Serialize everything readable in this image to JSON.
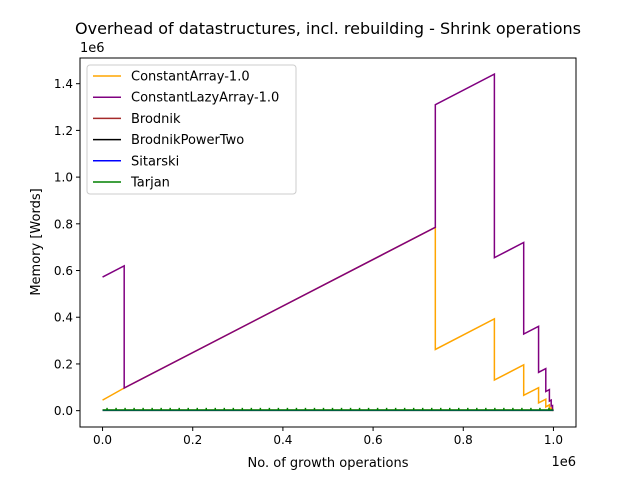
{
  "chart_data": {
    "type": "line",
    "title": "Overhead of datastructures, incl. rebuilding - Shrink operations",
    "xlabel": "No. of growth operations",
    "ylabel": "Memory [Words]",
    "x_offset_label": "1e6",
    "y_offset_label": "1e6",
    "xlim": [
      -50000,
      1050000
    ],
    "ylim": [
      -70000,
      1510000
    ],
    "x_ticks": [
      0,
      200000,
      400000,
      600000,
      800000,
      1000000
    ],
    "x_tick_labels": [
      "0.0",
      "0.2",
      "0.4",
      "0.6",
      "0.8",
      "1.0"
    ],
    "y_ticks": [
      0,
      200000,
      400000,
      600000,
      800000,
      1000000,
      1200000,
      1400000
    ],
    "y_tick_labels": [
      "0.0",
      "0.2",
      "0.4",
      "0.6",
      "0.8",
      "1.0",
      "1.2",
      "1.4"
    ],
    "legend_position": "top-left",
    "grid": false,
    "series": [
      {
        "name": "ConstantArray-1.0",
        "color": "#ffa500",
        "points": [
          [
            0,
            45000
          ],
          [
            48000,
            97000
          ],
          [
            48000,
            97000
          ],
          [
            738000,
            785000
          ],
          [
            738000,
            262000
          ],
          [
            869000,
            393000
          ],
          [
            869000,
            131000
          ],
          [
            934000,
            196000
          ],
          [
            934000,
            66000
          ],
          [
            967000,
            98000
          ],
          [
            967000,
            33000
          ],
          [
            983000,
            49000
          ],
          [
            983000,
            16000
          ],
          [
            991000,
            25000
          ],
          [
            991000,
            8000
          ],
          [
            995000,
            12000
          ],
          [
            995000,
            4000
          ],
          [
            998000,
            6000
          ],
          [
            998000,
            2000
          ],
          [
            1000000,
            0
          ]
        ]
      },
      {
        "name": "ConstantLazyArray-1.0",
        "color": "#800080",
        "points": [
          [
            0,
            572000
          ],
          [
            48000,
            620000
          ],
          [
            48000,
            97000
          ],
          [
            738000,
            785000
          ],
          [
            738000,
            1310000
          ],
          [
            869000,
            1441000
          ],
          [
            869000,
            655000
          ],
          [
            934000,
            720000
          ],
          [
            934000,
            328000
          ],
          [
            967000,
            361000
          ],
          [
            967000,
            164000
          ],
          [
            983000,
            180000
          ],
          [
            983000,
            82000
          ],
          [
            991000,
            90000
          ],
          [
            991000,
            41000
          ],
          [
            995000,
            45000
          ],
          [
            995000,
            20000
          ],
          [
            998000,
            22000
          ],
          [
            998000,
            5000
          ],
          [
            1000000,
            0
          ]
        ]
      },
      {
        "name": "Brodnik",
        "color": "#a52a2a",
        "points": [
          [
            0,
            2000
          ],
          [
            1000000,
            2000
          ]
        ]
      },
      {
        "name": "BrodnikPowerTwo",
        "color": "#000000",
        "points": [
          [
            0,
            1000
          ],
          [
            1000000,
            1000
          ]
        ]
      },
      {
        "name": "Sitarski",
        "color": "#0000ff",
        "points": [
          [
            0,
            1500
          ],
          [
            1000000,
            1500
          ]
        ]
      },
      {
        "name": "Tarjan",
        "color": "#008000",
        "points": [
          [
            0,
            3000
          ],
          [
            1000000,
            3000
          ]
        ]
      }
    ]
  }
}
